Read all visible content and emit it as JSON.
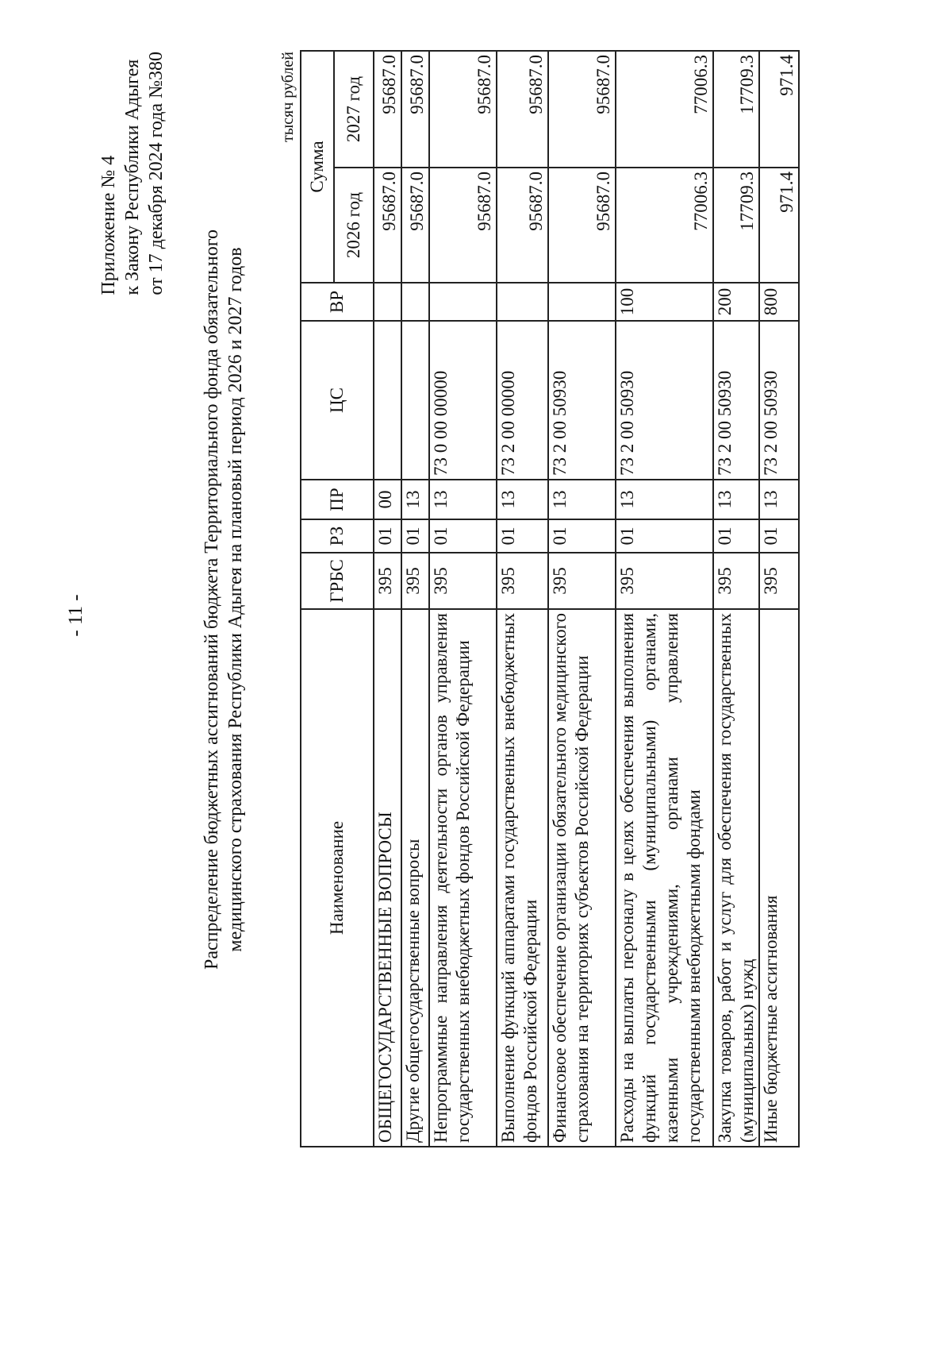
{
  "page_number": "- 11 -",
  "appendix": [
    "Приложение № 4",
    "к Закону Республики Адыгея",
    "от 17 декабря 2024 года №380"
  ],
  "title": [
    "Распределение бюджетных ассигнований бюджета Территориального фонда обязательного",
    "медицинского страхования Республики Адыгея на плановый период 2026 и 2027 годов"
  ],
  "units": "тысяч рублей",
  "table": {
    "headers": {
      "name": "Наименование",
      "grbs": "ГРБС",
      "rz": "РЗ",
      "pr": "ПР",
      "cs": "ЦС",
      "vr": "ВР",
      "sum": "Сумма",
      "y2026": "2026 год",
      "y2027": "2027 год"
    },
    "rows": [
      {
        "name": "ОБЩЕГОСУДАРСТВЕННЫЕ ВОПРОСЫ",
        "grbs": "395",
        "rz": "01",
        "pr": "00",
        "cs": "",
        "vr": "",
        "y2026": "95687.0",
        "y2027": "95687.0"
      },
      {
        "name": "Другие общегосударственные вопросы",
        "grbs": "395",
        "rz": "01",
        "pr": "13",
        "cs": "",
        "vr": "",
        "y2026": "95687.0",
        "y2027": "95687.0"
      },
      {
        "name": "Непрограммные направления деятельности органов управления государственных внебюджетных фондов Российской Федерации",
        "grbs": "395",
        "rz": "01",
        "pr": "13",
        "cs": "73 0 00 00000",
        "vr": "",
        "y2026": "95687.0",
        "y2027": "95687.0"
      },
      {
        "name": "Выполнение функций аппаратами государственных внебюджетных фондов Российской Федерации",
        "grbs": "395",
        "rz": "01",
        "pr": "13",
        "cs": "73 2 00 00000",
        "vr": "",
        "y2026": "95687.0",
        "y2027": "95687.0"
      },
      {
        "name": "Финансовое обеспечение организации обязательного медицинского страхования на территориях субъектов Российской Федерации",
        "grbs": "395",
        "rz": "01",
        "pr": "13",
        "cs": "73 2 00 50930",
        "vr": "",
        "y2026": "95687.0",
        "y2027": "95687.0"
      },
      {
        "name": "Расходы на выплаты персоналу в целях обеспечения выполнения функций государственными (муниципальными) органами, казенными учреждениями, органами управления государственными внебюджетными фондами",
        "grbs": "395",
        "rz": "01",
        "pr": "13",
        "cs": "73 2 00 50930",
        "vr": "100",
        "y2026": "77006.3",
        "y2027": "77006.3"
      },
      {
        "name": "Закупка товаров, работ и услуг для обеспечения государственных (муниципальных) нужд",
        "grbs": "395",
        "rz": "01",
        "pr": "13",
        "cs": "73 2 00 50930",
        "vr": "200",
        "y2026": "17709.3",
        "y2027": "17709.3"
      },
      {
        "name": "Иные бюджетные ассигнования",
        "grbs": "395",
        "rz": "01",
        "pr": "13",
        "cs": "73 2 00 50930",
        "vr": "800",
        "y2026": "971.4",
        "y2027": "971.4"
      }
    ]
  }
}
